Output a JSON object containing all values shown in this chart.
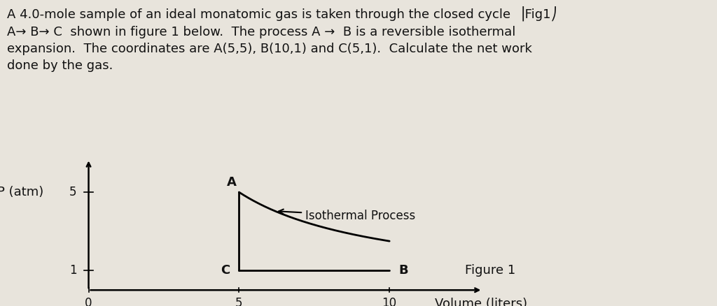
{
  "background_color": "#e8e4dc",
  "text_color": "#111111",
  "ylabel": "P (atm)",
  "xlabel": "Volume (liters)",
  "point_A": [
    5,
    5
  ],
  "point_B": [
    10,
    1
  ],
  "point_C": [
    5,
    1
  ],
  "ytick_vals": [
    1,
    5
  ],
  "ytick_labels": [
    "1",
    "5"
  ],
  "xtick_vals": [
    0,
    5,
    10
  ],
  "xtick_labels": [
    "0",
    "5",
    "10"
  ],
  "xlim": [
    -0.8,
    13.5
  ],
  "ylim": [
    -0.5,
    7.0
  ],
  "figure_label": "Figure 1",
  "isothermal_label": "Isothermal Process",
  "title_lines": [
    "A 4.0-mole sample of an ideal monatomic gas is taken through the closed cycle  ⎟Fig1⎠",
    "A→ B→ C  shown in figure 1 below.  The process A →  B is a reversible isothermal",
    "expansion.  The coordinates are A(5,5), B(10,1) and C(5,1).  Calculate the net work",
    "done by the gas."
  ],
  "title_fontsize": 13,
  "label_fontsize": 13,
  "tick_fontsize": 12
}
